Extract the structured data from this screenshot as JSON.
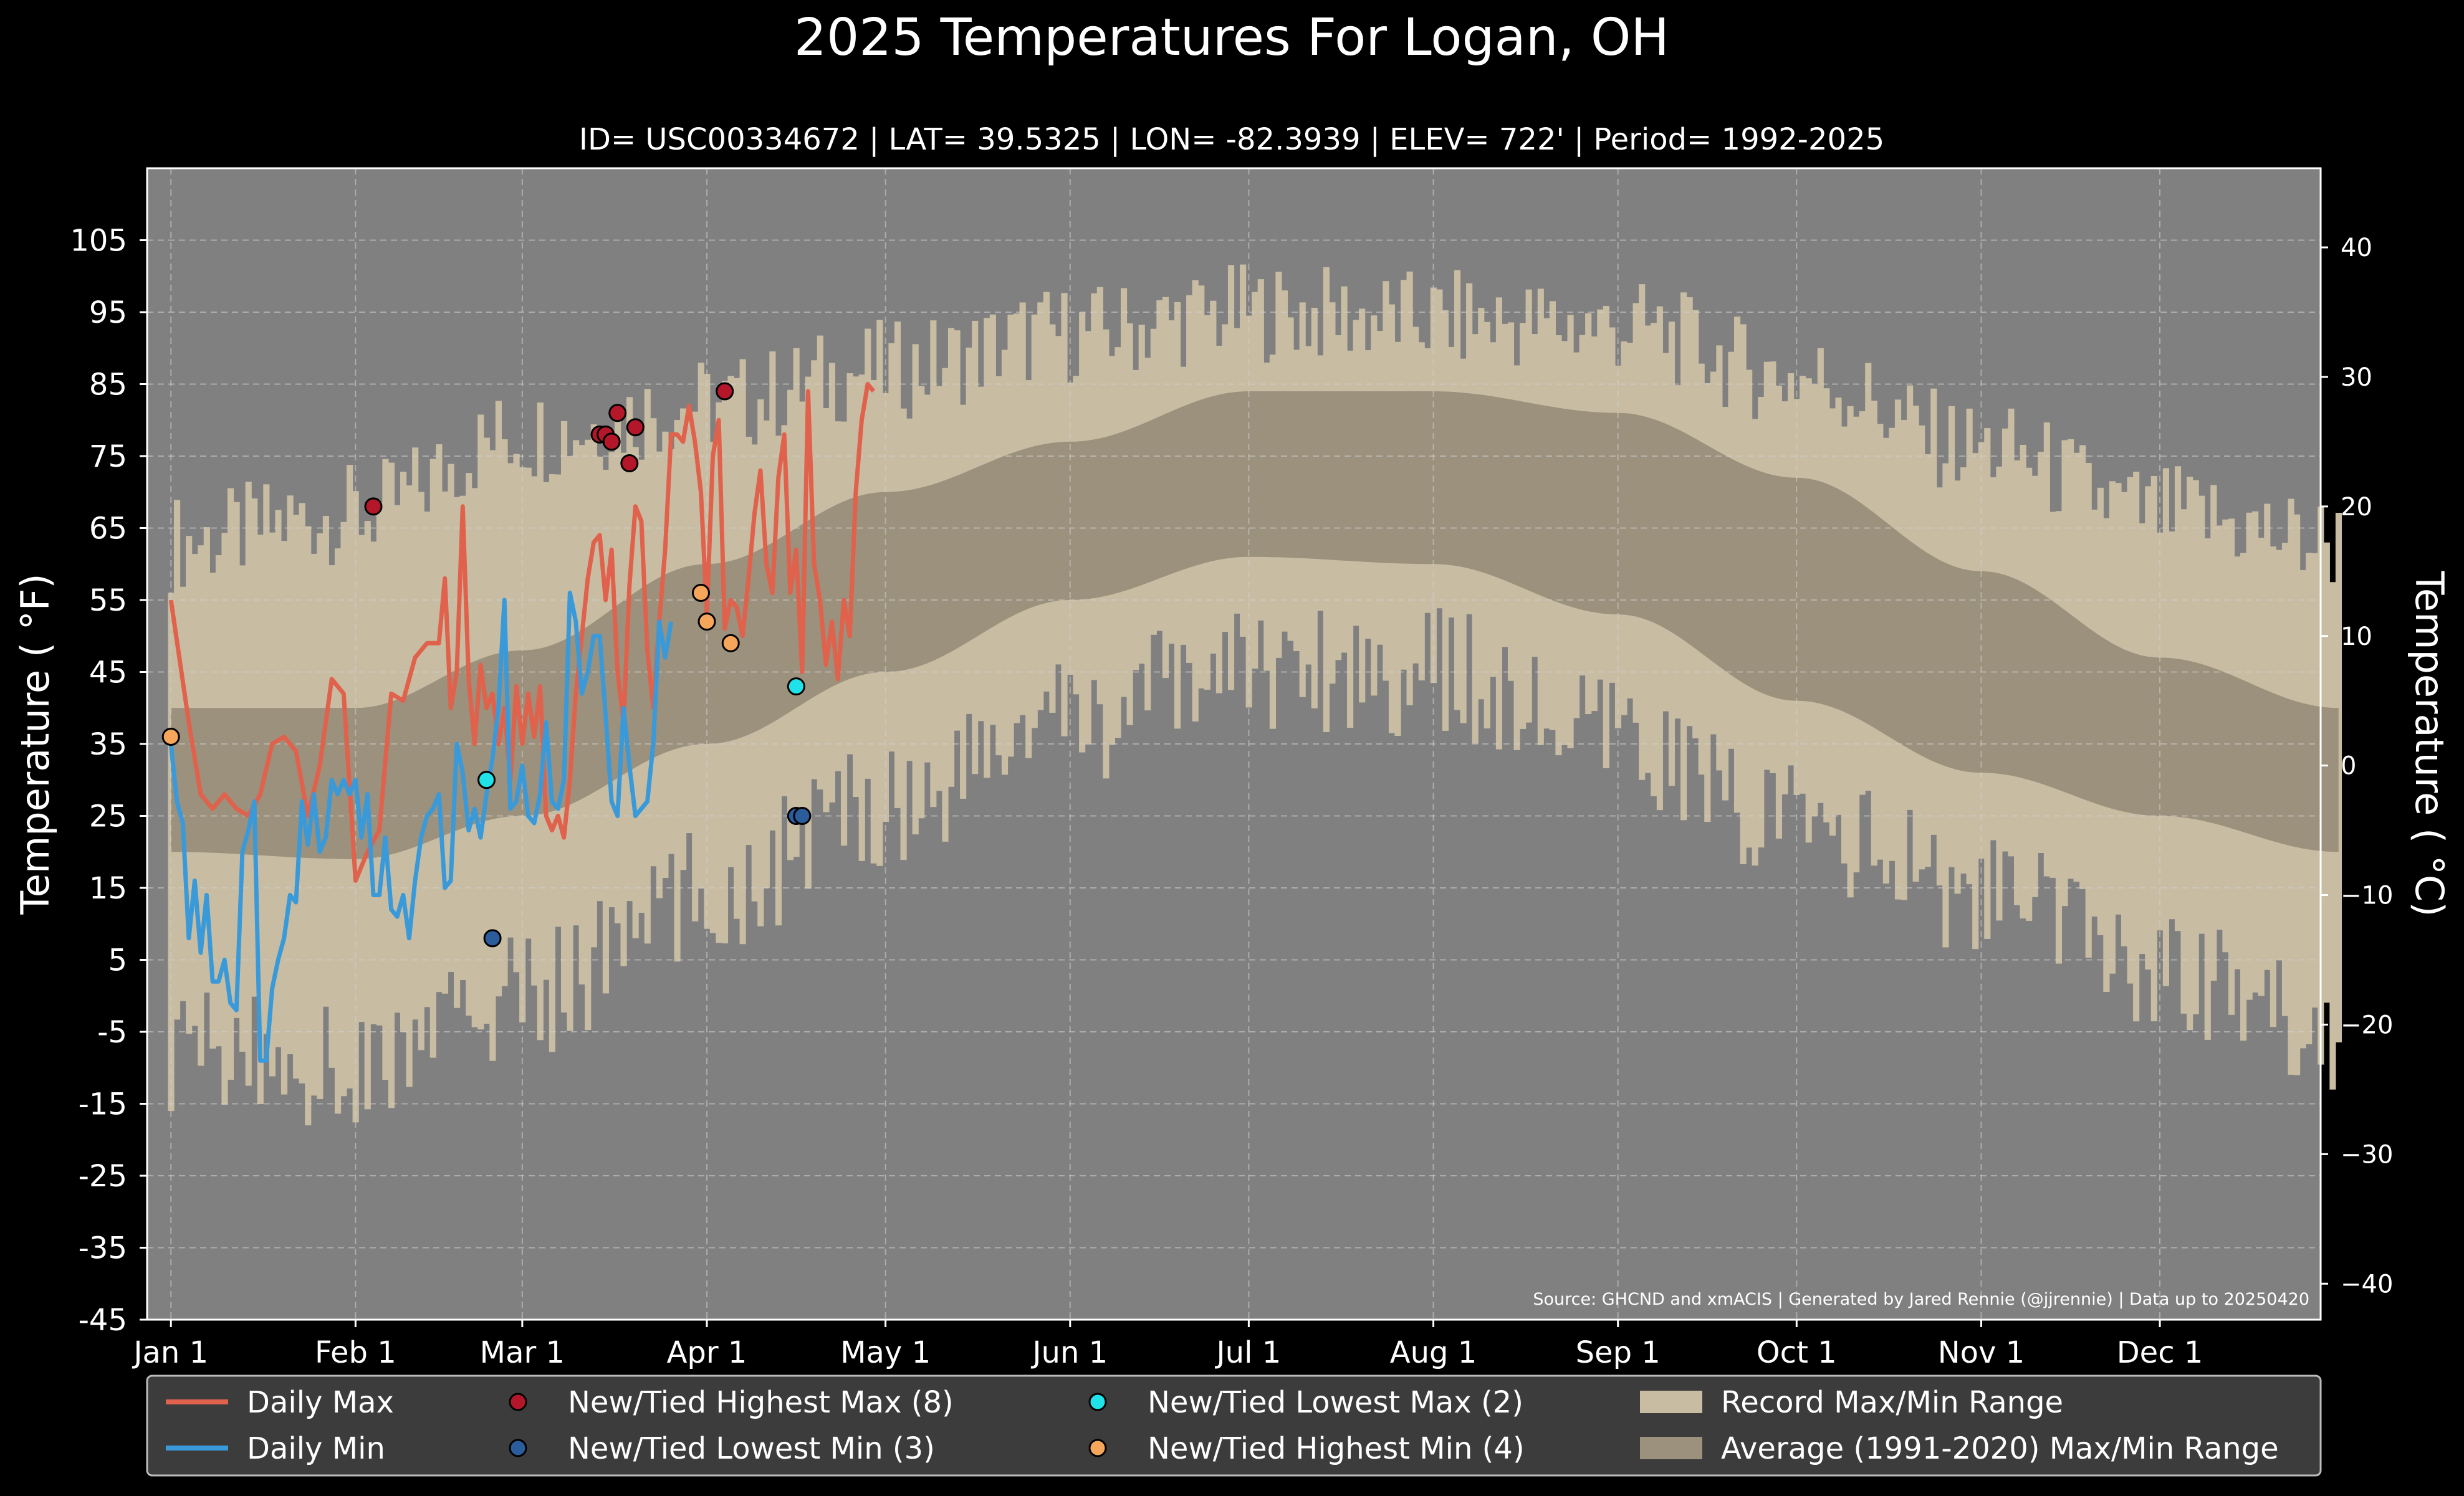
{
  "chart_data": {
    "type": "line",
    "title": "2025 Temperatures For Logan, OH",
    "subtitle": "ID= USC00334672 | LAT= 39.5325 | LON= -82.3939 | ELEV= 722' | Period= 1992-2025",
    "ylabel_left": "Temperature ($^\\circ$F)",
    "ylabel_left_display": "Temperature ( °F)",
    "ylabel_right_display": "Temperature ( °C)",
    "source": "Source: GHCND and xmACIS | Generated by Jared Rennie (@jjrennie) | Data up to 20250420",
    "ylim_f": [
      -45,
      115
    ],
    "xlim_day": [
      -4,
      361
    ],
    "yticks_f": [
      105,
      95,
      85,
      75,
      65,
      55,
      45,
      35,
      25,
      15,
      5,
      -5,
      -15,
      -25,
      -35,
      -45
    ],
    "yticks_c": [
      40,
      30,
      20,
      10,
      0,
      -10,
      -20,
      -30,
      -40
    ],
    "ytick_labels_c": [
      "40",
      "30",
      "20",
      "10",
      "0",
      "−10",
      "−20",
      "−30",
      "−40"
    ],
    "xticks": [
      {
        "label": "Jan 1",
        "day": 0
      },
      {
        "label": "Feb 1",
        "day": 31
      },
      {
        "label": "Mar 1",
        "day": 59
      },
      {
        "label": "Apr 1",
        "day": 90
      },
      {
        "label": "May 1",
        "day": 120
      },
      {
        "label": "Jun 1",
        "day": 151
      },
      {
        "label": "Jul 1",
        "day": 181
      },
      {
        "label": "Aug 1",
        "day": 212
      },
      {
        "label": "Sep 1",
        "day": 243
      },
      {
        "label": "Oct 1",
        "day": 273
      },
      {
        "label": "Nov 1",
        "day": 304
      },
      {
        "label": "Dec 1",
        "day": 334
      }
    ],
    "grid": true,
    "record_max_monthly": [
      {
        "day": 0,
        "value": 63
      },
      {
        "day": 31,
        "value": 67
      },
      {
        "day": 59,
        "value": 78
      },
      {
        "day": 90,
        "value": 82
      },
      {
        "day": 120,
        "value": 87
      },
      {
        "day": 151,
        "value": 92
      },
      {
        "day": 181,
        "value": 95
      },
      {
        "day": 212,
        "value": 94
      },
      {
        "day": 243,
        "value": 93
      },
      {
        "day": 273,
        "value": 86
      },
      {
        "day": 304,
        "value": 76
      },
      {
        "day": 334,
        "value": 67
      },
      {
        "day": 364,
        "value": 63
      }
    ],
    "record_min_monthly": [
      {
        "day": 0,
        "value": -7
      },
      {
        "day": 31,
        "value": -10
      },
      {
        "day": 59,
        "value": 0
      },
      {
        "day": 90,
        "value": 14
      },
      {
        "day": 120,
        "value": 27
      },
      {
        "day": 151,
        "value": 38
      },
      {
        "day": 181,
        "value": 46
      },
      {
        "day": 212,
        "value": 45
      },
      {
        "day": 243,
        "value": 35
      },
      {
        "day": 273,
        "value": 24
      },
      {
        "day": 304,
        "value": 14
      },
      {
        "day": 334,
        "value": 4
      },
      {
        "day": 364,
        "value": -5
      }
    ],
    "avg_max_monthly": [
      {
        "day": 0,
        "value": 40
      },
      {
        "day": 31,
        "value": 40
      },
      {
        "day": 59,
        "value": 48
      },
      {
        "day": 90,
        "value": 60
      },
      {
        "day": 120,
        "value": 70
      },
      {
        "day": 151,
        "value": 77
      },
      {
        "day": 181,
        "value": 84
      },
      {
        "day": 212,
        "value": 84
      },
      {
        "day": 243,
        "value": 81
      },
      {
        "day": 273,
        "value": 72
      },
      {
        "day": 304,
        "value": 59
      },
      {
        "day": 334,
        "value": 47
      },
      {
        "day": 364,
        "value": 40
      }
    ],
    "avg_min_monthly": [
      {
        "day": 0,
        "value": 20
      },
      {
        "day": 31,
        "value": 19
      },
      {
        "day": 59,
        "value": 25
      },
      {
        "day": 90,
        "value": 35
      },
      {
        "day": 120,
        "value": 45
      },
      {
        "day": 151,
        "value": 55
      },
      {
        "day": 181,
        "value": 61
      },
      {
        "day": 212,
        "value": 60
      },
      {
        "day": 243,
        "value": 53
      },
      {
        "day": 273,
        "value": 41
      },
      {
        "day": 304,
        "value": 31
      },
      {
        "day": 334,
        "value": 25
      },
      {
        "day": 364,
        "value": 20
      }
    ],
    "series": [
      {
        "name": "Daily Max",
        "color": "#e0624c",
        "points": [
          [
            0,
            55
          ],
          [
            3,
            38
          ],
          [
            5,
            28
          ],
          [
            7,
            26
          ],
          [
            9,
            28
          ],
          [
            11,
            26
          ],
          [
            13,
            25
          ],
          [
            15,
            28
          ],
          [
            17,
            35
          ],
          [
            19,
            36
          ],
          [
            21,
            34
          ],
          [
            23,
            25
          ],
          [
            25,
            32
          ],
          [
            27,
            44
          ],
          [
            29,
            42
          ],
          [
            31,
            16
          ],
          [
            33,
            20
          ],
          [
            35,
            23
          ],
          [
            37,
            42
          ],
          [
            39,
            41
          ],
          [
            41,
            47
          ],
          [
            43,
            49
          ],
          [
            45,
            49
          ],
          [
            46,
            58
          ],
          [
            47,
            40
          ],
          [
            48,
            45
          ],
          [
            49,
            68
          ],
          [
            50,
            44
          ],
          [
            51,
            35
          ],
          [
            52,
            46
          ],
          [
            53,
            40
          ],
          [
            54,
            42
          ],
          [
            55,
            35
          ],
          [
            56,
            40
          ],
          [
            57,
            30
          ],
          [
            58,
            43
          ],
          [
            59,
            35
          ],
          [
            60,
            42
          ],
          [
            61,
            36
          ],
          [
            62,
            43
          ],
          [
            63,
            25
          ],
          [
            64,
            23
          ],
          [
            65,
            25
          ],
          [
            66,
            22
          ],
          [
            67,
            30
          ],
          [
            68,
            42
          ],
          [
            69,
            50
          ],
          [
            70,
            58
          ],
          [
            71,
            63
          ],
          [
            72,
            64
          ],
          [
            73,
            55
          ],
          [
            74,
            62
          ],
          [
            75,
            45
          ],
          [
            76,
            38
          ],
          [
            77,
            57
          ],
          [
            78,
            68
          ],
          [
            79,
            66
          ],
          [
            80,
            48
          ],
          [
            81,
            40
          ],
          [
            82,
            52
          ],
          [
            83,
            62
          ],
          [
            84,
            78
          ],
          [
            85,
            78
          ],
          [
            86,
            77
          ],
          [
            87,
            82
          ],
          [
            88,
            77
          ],
          [
            89,
            70
          ],
          [
            90,
            53
          ],
          [
            91,
            75
          ],
          [
            92,
            80
          ],
          [
            93,
            51
          ],
          [
            94,
            55
          ],
          [
            95,
            54
          ],
          [
            96,
            50
          ],
          [
            97,
            58
          ],
          [
            98,
            67
          ],
          [
            99,
            73
          ],
          [
            100,
            60
          ],
          [
            101,
            56
          ],
          [
            102,
            72
          ],
          [
            103,
            78
          ],
          [
            104,
            56
          ],
          [
            105,
            62
          ],
          [
            106,
            45
          ],
          [
            107,
            84
          ],
          [
            108,
            60
          ],
          [
            109,
            55
          ],
          [
            110,
            46
          ],
          [
            111,
            52
          ],
          [
            112,
            44
          ],
          [
            113,
            55
          ],
          [
            114,
            50
          ],
          [
            115,
            70
          ],
          [
            116,
            80
          ],
          [
            117,
            85
          ],
          [
            118,
            84
          ]
        ]
      },
      {
        "name": "Daily Min",
        "color": "#3a9ad9",
        "points": [
          [
            0,
            35
          ],
          [
            1,
            27
          ],
          [
            2,
            24
          ],
          [
            3,
            8
          ],
          [
            4,
            16
          ],
          [
            5,
            6
          ],
          [
            6,
            14
          ],
          [
            7,
            2
          ],
          [
            8,
            2
          ],
          [
            9,
            5
          ],
          [
            10,
            -1
          ],
          [
            11,
            -2
          ],
          [
            12,
            20
          ],
          [
            13,
            23
          ],
          [
            14,
            27
          ],
          [
            15,
            -9
          ],
          [
            16,
            -9
          ],
          [
            17,
            1
          ],
          [
            18,
            5
          ],
          [
            19,
            8
          ],
          [
            20,
            14
          ],
          [
            21,
            13
          ],
          [
            22,
            27
          ],
          [
            23,
            21
          ],
          [
            24,
            28
          ],
          [
            25,
            20
          ],
          [
            26,
            22
          ],
          [
            27,
            30
          ],
          [
            28,
            28
          ],
          [
            29,
            30
          ],
          [
            30,
            28
          ],
          [
            31,
            30
          ],
          [
            32,
            22
          ],
          [
            33,
            28
          ],
          [
            34,
            14
          ],
          [
            35,
            14
          ],
          [
            36,
            22
          ],
          [
            37,
            12
          ],
          [
            38,
            11
          ],
          [
            39,
            14
          ],
          [
            40,
            8
          ],
          [
            41,
            16
          ],
          [
            42,
            22
          ],
          [
            43,
            25
          ],
          [
            44,
            26
          ],
          [
            45,
            28
          ],
          [
            46,
            15
          ],
          [
            47,
            16
          ],
          [
            48,
            35
          ],
          [
            49,
            31
          ],
          [
            50,
            23
          ],
          [
            51,
            26
          ],
          [
            52,
            22
          ],
          [
            53,
            28
          ],
          [
            54,
            33
          ],
          [
            55,
            40
          ],
          [
            56,
            55
          ],
          [
            57,
            26
          ],
          [
            58,
            27
          ],
          [
            59,
            32
          ],
          [
            60,
            25
          ],
          [
            61,
            24
          ],
          [
            62,
            28
          ],
          [
            63,
            38
          ],
          [
            64,
            27
          ],
          [
            65,
            26
          ],
          [
            66,
            30
          ],
          [
            67,
            56
          ],
          [
            68,
            52
          ],
          [
            69,
            42
          ],
          [
            70,
            45
          ],
          [
            71,
            50
          ],
          [
            72,
            50
          ],
          [
            73,
            39
          ],
          [
            74,
            27
          ],
          [
            75,
            25
          ],
          [
            76,
            40
          ],
          [
            77,
            32
          ],
          [
            78,
            25
          ],
          [
            79,
            26
          ],
          [
            80,
            27
          ],
          [
            81,
            35
          ],
          [
            82,
            52
          ],
          [
            83,
            47
          ],
          [
            84,
            52
          ]
        ]
      }
    ],
    "records": [
      {
        "type": "New/Tied Highest Max",
        "count": 8,
        "color": "#b5172a",
        "points": [
          [
            34,
            68
          ],
          [
            72,
            78
          ],
          [
            73,
            78
          ],
          [
            74,
            77
          ],
          [
            75,
            81
          ],
          [
            77,
            74
          ],
          [
            78,
            79
          ],
          [
            93,
            84
          ]
        ]
      },
      {
        "type": "New/Tied Lowest Min",
        "count": 3,
        "color": "#2b5c9c",
        "points": [
          [
            54,
            8
          ],
          [
            105,
            25
          ],
          [
            106,
            25
          ]
        ]
      },
      {
        "type": "New/Tied Lowest Max",
        "count": 2,
        "color": "#1fe3e8",
        "points": [
          [
            53,
            30
          ],
          [
            105,
            43
          ]
        ]
      },
      {
        "type": "New/Tied Highest Min",
        "count": 4,
        "color": "#f5a65b",
        "points": [
          [
            0,
            36
          ],
          [
            89,
            56
          ],
          [
            90,
            52
          ],
          [
            94,
            49
          ]
        ]
      }
    ],
    "legend": {
      "placement": "bottom",
      "entries": [
        {
          "label": "Daily Max",
          "kind": "line",
          "color": "#e0624c"
        },
        {
          "label": "New/Tied Highest Max (8)",
          "kind": "dot",
          "color": "#b5172a"
        },
        {
          "label": "New/Tied Lowest Max (2)",
          "kind": "dot",
          "color": "#1fe3e8"
        },
        {
          "label": "Record Max/Min Range",
          "kind": "box",
          "color": "#c8bda3"
        },
        {
          "label": "Daily Min",
          "kind": "line",
          "color": "#3a9ad9"
        },
        {
          "label": "New/Tied Lowest Min (3)",
          "kind": "dot",
          "color": "#2b5c9c"
        },
        {
          "label": "New/Tied Highest Min (4)",
          "kind": "dot",
          "color": "#f5a65b"
        },
        {
          "label": "Average (1991-2020) Max/Min Range",
          "kind": "box",
          "color": "#9b917c"
        }
      ]
    },
    "colors": {
      "background": "#000000",
      "plot_bg": "#808080",
      "record_band": "#c8bda3",
      "avg_band": "#9b917c"
    }
  }
}
